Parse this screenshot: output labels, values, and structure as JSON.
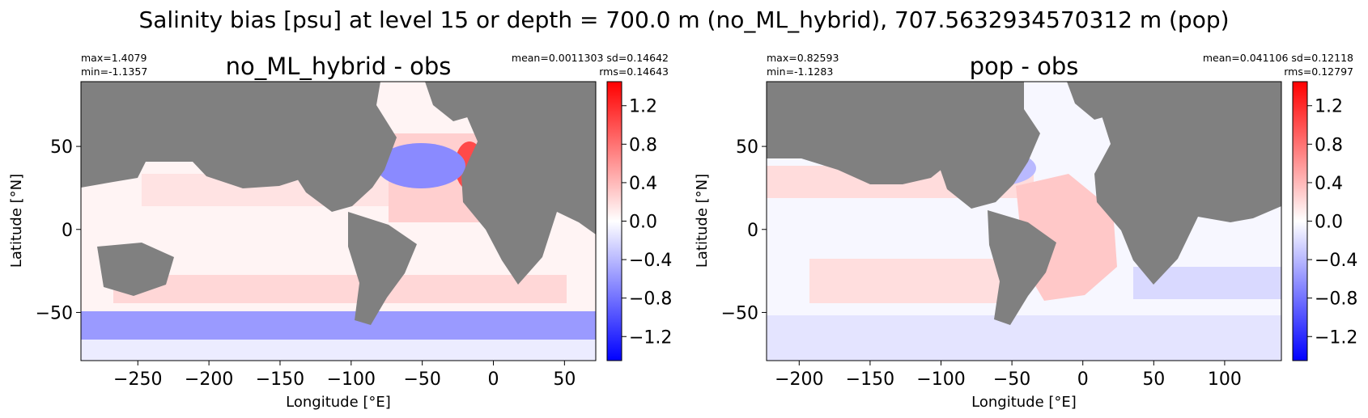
{
  "figure_title": "Salinity bias [psu] at level 15 or depth = 700.0 m (no_ML_hybrid), 707.5632934570312 m (pop)",
  "colors": {
    "land": "#808080",
    "ocean_neutral": "#fff5f5",
    "colormap": [
      "#0000ff",
      "#ffffff",
      "#ff0000"
    ]
  },
  "chart_data": [
    {
      "type": "heatmap",
      "title": "no_ML_hybrid - obs",
      "xlabel": "Longitude [°E]",
      "ylabel": "Latitude [°N]",
      "xlim": [
        -290,
        72
      ],
      "ylim": [
        -79,
        89
      ],
      "xticks": [
        -250,
        -200,
        -150,
        -100,
        -50,
        0,
        50
      ],
      "xtick_labels": [
        "−250",
        "−200",
        "−150",
        "−100",
        "−50",
        "0",
        "50"
      ],
      "yticks": [
        -50,
        0,
        50
      ],
      "ytick_labels": [
        "−50",
        "0",
        "50"
      ],
      "stats_left": [
        "max=1.4079",
        "min=-1.1357"
      ],
      "stats_right": [
        "mean=0.0011303  sd=0.14642",
        "rms=0.14643"
      ],
      "colorbar": {
        "vmin": -1.45,
        "vmax": 1.45,
        "ticks": [
          -1.2,
          -0.8,
          -0.4,
          0.0,
          0.4,
          0.8,
          1.2
        ],
        "tick_labels": [
          "−1.2",
          "−0.8",
          "−0.4",
          "0.0",
          "0.4",
          "0.8",
          "1.2"
        ]
      }
    },
    {
      "type": "heatmap",
      "title": "pop - obs",
      "xlabel": "Longitude [°E]",
      "ylabel": "Latitude [°N]",
      "xlim": [
        -223,
        140
      ],
      "ylim": [
        -79,
        89
      ],
      "xticks": [
        -200,
        -150,
        -100,
        -50,
        0,
        50,
        100
      ],
      "xtick_labels": [
        "−200",
        "−150",
        "−100",
        "−50",
        "0",
        "50",
        "100"
      ],
      "yticks": [
        -50,
        0,
        50
      ],
      "ytick_labels": [
        "−50",
        "0",
        "50"
      ],
      "stats_left": [
        "max=0.82593",
        "min=-1.1283"
      ],
      "stats_right": [
        "mean=0.041106  sd=0.12118",
        "rms=0.12797"
      ],
      "colorbar": {
        "vmin": -1.45,
        "vmax": 1.45,
        "ticks": [
          -1.2,
          -0.8,
          -0.4,
          0.0,
          0.4,
          0.8,
          1.2
        ],
        "tick_labels": [
          "−1.2",
          "−0.8",
          "−0.4",
          "0.0",
          "0.4",
          "0.8",
          "1.2"
        ]
      }
    }
  ]
}
